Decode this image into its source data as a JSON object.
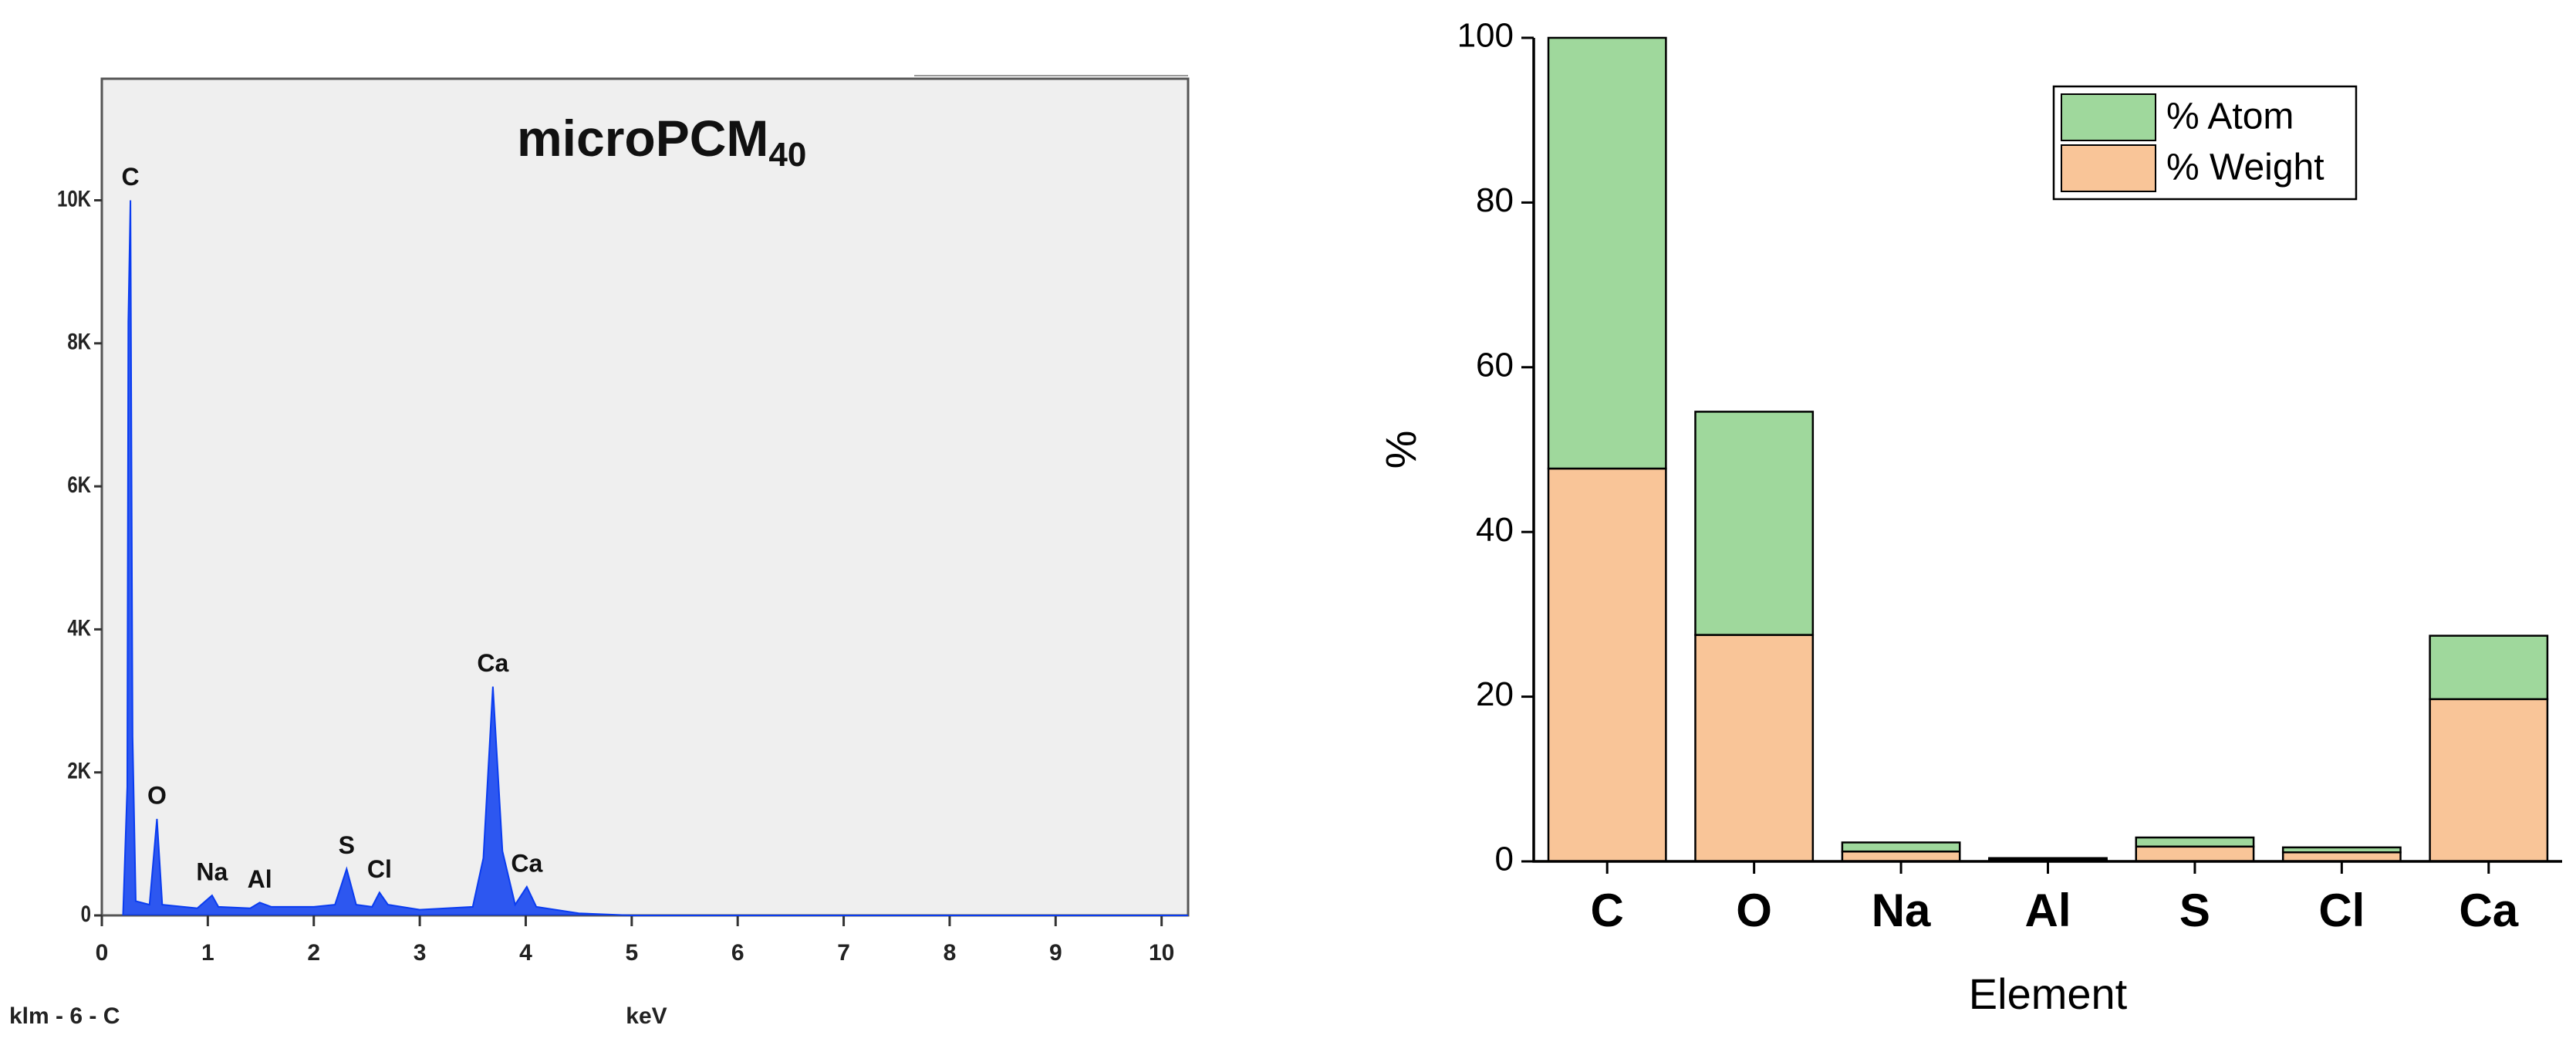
{
  "chart_data": [
    {
      "type": "area",
      "title": "microPCM",
      "title_subscript": "40",
      "x_label": "keV",
      "caption": "klm - 6 - C",
      "color": "#0a3cf0",
      "x": [
        0.2,
        0.24,
        0.25,
        0.27,
        0.29,
        0.32,
        0.45,
        0.52,
        0.57,
        0.9,
        1.04,
        1.1,
        1.4,
        1.49,
        1.6,
        2.0,
        2.2,
        2.31,
        2.4,
        2.55,
        2.62,
        2.7,
        3.0,
        3.5,
        3.6,
        3.69,
        3.78,
        3.9,
        4.01,
        4.1,
        4.5,
        5.0,
        10.25
      ],
      "values": [
        0,
        1800,
        8300,
        10000,
        2500,
        200,
        150,
        1350,
        150,
        100,
        280,
        120,
        100,
        180,
        120,
        120,
        150,
        650,
        150,
        120,
        320,
        150,
        80,
        120,
        800,
        3200,
        900,
        150,
        400,
        120,
        30,
        0,
        0
      ],
      "annotations": [
        {
          "text": "C",
          "x": 0.27,
          "y": 10000
        },
        {
          "text": "O",
          "x": 0.52,
          "y": 1350
        },
        {
          "text": "Na",
          "x": 1.04,
          "y": 280
        },
        {
          "text": "Al",
          "x": 1.49,
          "y": 180
        },
        {
          "text": "S",
          "x": 2.31,
          "y": 650
        },
        {
          "text": "Cl",
          "x": 2.62,
          "y": 320
        },
        {
          "text": "Ca",
          "x": 3.69,
          "y": 3200
        },
        {
          "text": "Ca",
          "x": 4.01,
          "y": 400
        }
      ],
      "xlim": [
        0,
        10.25
      ],
      "ylim": [
        0,
        11700
      ],
      "xticks": [
        0,
        1,
        2,
        3,
        4,
        5,
        6,
        7,
        8,
        9,
        10
      ],
      "yticks": [
        0,
        {
          "value": 2000,
          "label": "2K"
        },
        {
          "value": 4000,
          "label": "4K"
        },
        {
          "value": 6000,
          "label": "6K"
        },
        {
          "value": 8000,
          "label": "8K"
        },
        {
          "value": 10000,
          "label": "10K"
        }
      ]
    },
    {
      "type": "stacked_bar",
      "x_label": "Element",
      "y_label": "%",
      "categories": [
        "C",
        "O",
        "Na",
        "Al",
        "S",
        "Cl",
        "Ca"
      ],
      "series": [
        {
          "name": "% Weight",
          "color": "#f9c598",
          "values": [
            47.7,
            27.5,
            1.2,
            0.2,
            1.8,
            1.1,
            19.7
          ]
        },
        {
          "name": "% Atom",
          "color": "#9fd89c",
          "values": [
            52.3,
            27.1,
            1.1,
            0.2,
            1.1,
            0.6,
            7.7
          ]
        }
      ],
      "ylim": [
        0,
        100
      ],
      "yticks": [
        0,
        20,
        40,
        60,
        80,
        100
      ],
      "legend": "top-right"
    }
  ]
}
